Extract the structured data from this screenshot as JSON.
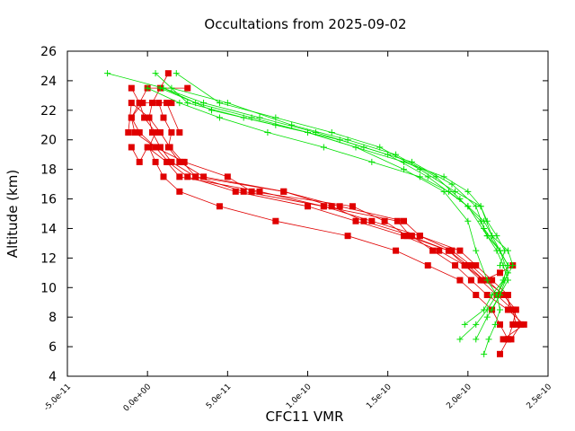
{
  "chart_data": {
    "type": "line",
    "title": "Occultations from 2025-09-02",
    "xlabel": "CFC11 VMR",
    "ylabel": "Altitude (km)",
    "xlim": [
      -5e-11,
      2.5e-10
    ],
    "ylim": [
      4,
      26
    ],
    "xticks": [
      "-5.0e-11",
      "0.0e+00",
      "5.0e-11",
      "1.0e-10",
      "1.5e-10",
      "2.0e-10",
      "2.5e-10"
    ],
    "yticks": [
      "4",
      "6",
      "8",
      "10",
      "12",
      "14",
      "16",
      "18",
      "20",
      "22",
      "24",
      "26"
    ],
    "grid": false,
    "legend": "none",
    "colors": {
      "series_red": "#e00000",
      "series_green": "#00e000",
      "axis": "#000000"
    },
    "series": [
      {
        "color": "red",
        "marker": "square",
        "profiles": [
          {
            "x": [
              2.2e-10,
              2.25e-10,
              2.2e-10,
              2.15e-10,
              2.05e-10,
              1.95e-10,
              1.75e-10,
              1.55e-10,
              1.25e-10,
              8e-11,
              4.5e-11,
              2e-11,
              1e-11,
              5e-12,
              1e-12,
              5e-12,
              -2e-12,
              -5e-12,
              -1e-11
            ],
            "y": [
              5.5,
              6.5,
              7.5,
              8.5,
              9.5,
              10.5,
              11.5,
              12.5,
              13.5,
              14.5,
              15.5,
              16.5,
              17.5,
              18.5,
              19.5,
              20.5,
              21.5,
              22.5,
              23.5
            ]
          },
          {
            "x": [
              2.25e-10,
              2.28e-10,
              2.3e-10,
              2.22e-10,
              2.12e-10,
              2.02e-10,
              1.9e-10,
              1.7e-10,
              1.4e-10,
              1.1e-10,
              6e-11,
              3e-11,
              1.5e-11,
              8e-12,
              3e-12,
              1e-12,
              3e-12,
              8e-12,
              1.3e-11
            ],
            "y": [
              6.5,
              7.5,
              8.5,
              9.5,
              10.5,
              11.5,
              12.5,
              13.5,
              14.5,
              15.5,
              16.5,
              17.5,
              18.5,
              19.5,
              20.5,
              21.5,
              22.5,
              23.5,
              24.5
            ]
          },
          {
            "x": [
              2.27e-10,
              2.33e-10,
              2.28e-10,
              2.18e-10,
              2.08e-10,
              1.98e-10,
              1.82e-10,
              1.6e-10,
              1.3e-10,
              1e-10,
              5.5e-11,
              2.5e-11,
              1.3e-11,
              5e-12,
              -5e-12,
              -1e-11,
              -5e-12,
              0,
              2.5e-11
            ],
            "y": [
              6.5,
              7.5,
              8.5,
              9.5,
              10.5,
              11.5,
              12.5,
              13.5,
              14.5,
              15.5,
              16.5,
              17.5,
              18.5,
              19.5,
              20.5,
              21.5,
              22.5,
              23.5,
              23.5
            ]
          },
          {
            "x": [
              2.22e-10,
              2.35e-10,
              2.25e-10,
              2.12e-10,
              2.02e-10,
              1.92e-10,
              1.78e-10,
              1.65e-10,
              1.35e-10,
              1.15e-10,
              8.5e-11,
              3.5e-11,
              2e-11,
              1.3e-11,
              1.5e-11,
              1e-11,
              7e-12,
              1.5e-11
            ],
            "y": [
              6.5,
              7.5,
              8.5,
              9.5,
              10.5,
              11.5,
              12.5,
              13.5,
              14.5,
              15.5,
              16.5,
              17.5,
              18.5,
              19.5,
              20.5,
              21.5,
              22.5,
              22.5
            ]
          },
          {
            "x": [
              2.3e-10,
              2.28e-10,
              2.23e-10,
              2.1e-10,
              2e-10,
              1.88e-10,
              1.62e-10,
              1.48e-10,
              1.28e-10,
              6.5e-11,
              5e-11,
              2.3e-11,
              5e-12,
              -8e-12,
              -1e-11,
              -3e-12,
              1.2e-11,
              2e-11
            ],
            "y": [
              7.5,
              8.5,
              9.5,
              10.5,
              11.5,
              12.5,
              13.5,
              14.5,
              15.5,
              16.5,
              17.5,
              18.5,
              19.5,
              20.5,
              21.5,
              22.5,
              22.5,
              20.5
            ]
          },
          {
            "x": [
              2.26e-10,
              2.25e-10,
              2.15e-10,
              2.05e-10,
              1.95e-10,
              1.7e-10,
              1.6e-10,
              1.2e-10,
              8.5e-11,
              3e-11,
              2.2e-11,
              1.4e-11,
              8e-12,
              1e-12,
              -1e-11,
              -1.2e-11
            ],
            "y": [
              8.5,
              9.5,
              10.5,
              11.5,
              12.5,
              13.5,
              14.5,
              15.5,
              16.5,
              17.5,
              18.5,
              19.5,
              20.5,
              21.5,
              22.5,
              20.5
            ]
          },
          {
            "x": [
              2.28e-10,
              2.2e-10,
              2.1e-10,
              1.98e-10,
              1.88e-10,
              1.64e-10,
              1.56e-10,
              1.1e-10,
              7e-11,
              2e-11,
              1.2e-11,
              0,
              -5e-12,
              -1e-11
            ],
            "y": [
              11.5,
              11.0,
              10.5,
              11.5,
              12.5,
              13.5,
              14.5,
              15.5,
              16.5,
              17.5,
              18.5,
              19.5,
              18.5,
              19.5
            ]
          }
        ]
      },
      {
        "color": "green",
        "marker": "plus",
        "profiles": [
          {
            "x": [
              1.95e-10,
              2.05e-10,
              2.12e-10,
              2.18e-10,
              2.22e-10,
              2.25e-10,
              2.2e-10,
              2.12e-10,
              2e-10,
              1.75e-10,
              1.5e-10,
              1.2e-10,
              8e-11,
              4e-11,
              1e-11,
              -2.5e-11
            ],
            "y": [
              6.5,
              7.5,
              8.5,
              9.5,
              10.5,
              11.5,
              12.5,
              13.5,
              15.5,
              17.5,
              19.0,
              20.0,
              21.0,
              22.0,
              23.5,
              24.5
            ]
          },
          {
            "x": [
              2.1e-10,
              2.13e-10,
              2.17e-10,
              2.2e-10,
              2.18e-10,
              2.12e-10,
              2.05e-10,
              2e-10,
              1.85e-10,
              1.6e-10,
              1.3e-10,
              1e-10,
              6e-11,
              2.5e-11,
              5e-12
            ],
            "y": [
              5.5,
              6.5,
              7.5,
              8.5,
              9.5,
              10.5,
              12.5,
              14.5,
              16.5,
              18.0,
              19.5,
              20.5,
              21.5,
              22.5,
              24.5
            ]
          },
          {
            "x": [
              1.98e-10,
              2.1e-10,
              2.15e-10,
              2.22e-10,
              2.25e-10,
              2.2e-10,
              2.15e-10,
              2.08e-10,
              1.92e-10,
              1.7e-10,
              1.45e-10,
              1.15e-10,
              8e-11,
              4.5e-11,
              1.8e-11
            ],
            "y": [
              7.5,
              8.5,
              9.5,
              10.5,
              11.5,
              12.5,
              13.5,
              15.5,
              16.5,
              18.0,
              19.5,
              20.5,
              21.5,
              22.5,
              24.5
            ]
          },
          {
            "x": [
              2.15e-10,
              2.2e-10,
              2.25e-10,
              2.22e-10,
              2.18e-10,
              2.12e-10,
              2.08e-10,
              1.95e-10,
              1.8e-10,
              1.55e-10,
              1.25e-10,
              9e-11,
              5e-11,
              1.5e-11
            ],
            "y": [
              8.5,
              9.5,
              10.5,
              11.5,
              12.5,
              13.5,
              14.5,
              16.0,
              17.5,
              19.0,
              20.0,
              21.0,
              22.5,
              23.5
            ]
          },
          {
            "x": [
              2.05e-10,
              2.12e-10,
              2.2e-10,
              2.25e-10,
              2.2e-10,
              2.1e-10,
              2.05e-10,
              1.9e-10,
              1.65e-10,
              1.35e-10,
              1.05e-10,
              7e-11,
              3.5e-11,
              1e-11
            ],
            "y": [
              6.5,
              8.0,
              9.5,
              11.0,
              12.5,
              14.0,
              15.5,
              17.0,
              18.5,
              19.5,
              20.5,
              21.5,
              22.5,
              23.5
            ]
          },
          {
            "x": [
              2.18e-10,
              2.23e-10,
              2.28e-10,
              2.25e-10,
              2.15e-10,
              2.1e-10,
              2e-10,
              1.88e-10,
              1.7e-10,
              1.4e-10,
              1.1e-10,
              7.5e-11,
              4.5e-11,
              2e-11,
              0
            ],
            "y": [
              9.5,
              10.5,
              11.5,
              12.5,
              13.5,
              14.5,
              15.5,
              16.5,
              17.5,
              18.5,
              19.5,
              20.5,
              21.5,
              22.5,
              23.5
            ]
          },
          {
            "x": [
              2.2e-10,
              2.23e-10,
              2.18e-10,
              2.12e-10,
              2.08e-10,
              2e-10,
              1.85e-10,
              1.6e-10,
              1.3e-10,
              1e-10,
              6.5e-11,
              3e-11,
              8e-12
            ],
            "y": [
              11.5,
              12.5,
              13.5,
              14.5,
              15.5,
              16.5,
              17.5,
              18.5,
              19.5,
              20.5,
              21.5,
              22.5,
              23.5
            ]
          }
        ]
      }
    ]
  }
}
